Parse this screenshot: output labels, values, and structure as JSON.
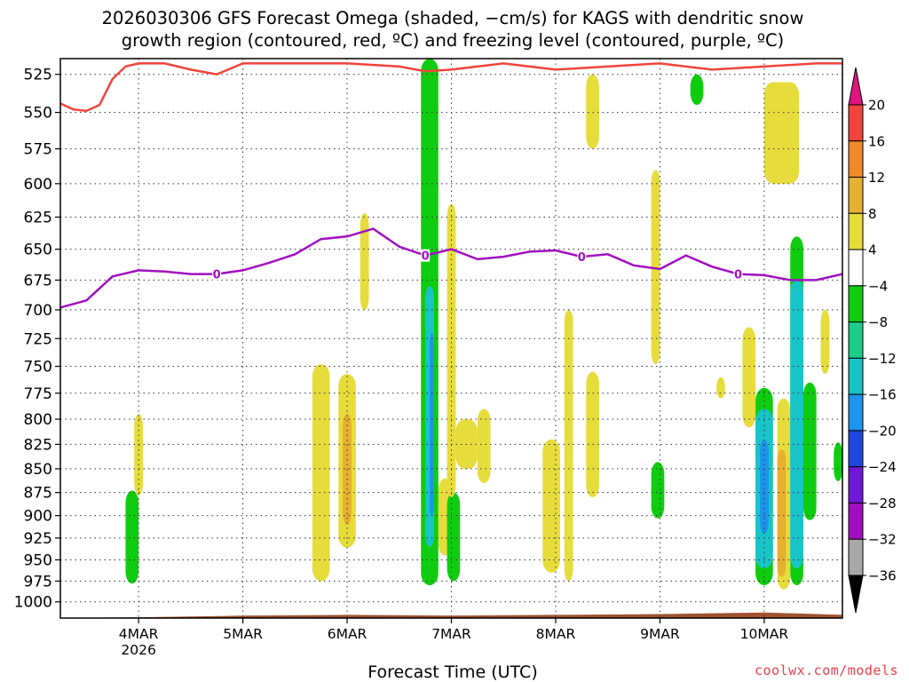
{
  "chart_data": {
    "type": "heatmap",
    "title_line1": "2026030306 GFS Forecast Omega (shaded, −cm/s) for KAGS with dendritic snow",
    "title_line2": "growth region (contoured, red, ºC) and freezing level (contoured, purple, ºC)",
    "xlabel": "Forecast Time (UTC)",
    "credit": "coolwx.com/models",
    "x_range": [
      "2026-03-03T06",
      "2026-03-10T18"
    ],
    "x_ticks": [
      {
        "label": "4MAR",
        "sublabel": "2026",
        "time": "2026-03-04T00"
      },
      {
        "label": "5MAR",
        "sublabel": "",
        "time": "2026-03-05T00"
      },
      {
        "label": "6MAR",
        "sublabel": "",
        "time": "2026-03-06T00"
      },
      {
        "label": "7MAR",
        "sublabel": "",
        "time": "2026-03-07T00"
      },
      {
        "label": "8MAR",
        "sublabel": "",
        "time": "2026-03-08T00"
      },
      {
        "label": "9MAR",
        "sublabel": "",
        "time": "2026-03-09T00"
      },
      {
        "label": "10MAR",
        "sublabel": "",
        "time": "2026-03-10T00"
      }
    ],
    "y_ticks": [
      {
        "label": "525",
        "value": 525
      },
      {
        "label": "550",
        "value": 550
      },
      {
        "label": "575",
        "value": 575
      },
      {
        "label": "600",
        "value": 600
      },
      {
        "label": "625",
        "value": 625
      },
      {
        "label": "650",
        "value": 650
      },
      {
        "label": "675",
        "value": 675
      },
      {
        "label": "700",
        "value": 700
      },
      {
        "label": "725",
        "value": 725
      },
      {
        "label": "750",
        "value": 750
      },
      {
        "label": "775",
        "value": 775
      },
      {
        "label": "800",
        "value": 800
      },
      {
        "label": "825",
        "value": 825
      },
      {
        "label": "850",
        "value": 850
      },
      {
        "label": "875",
        "value": 875
      },
      {
        "label": "900",
        "value": 900
      },
      {
        "label": "925",
        "value": 925
      },
      {
        "label": "950",
        "value": 950
      },
      {
        "label": "975",
        "value": 975
      },
      {
        "label": "1000",
        "value": 1000
      }
    ],
    "y_range": [
      515,
      1020
    ],
    "y_scale": "log-pressure",
    "grid": true,
    "colorbar": [
      {
        "label": "20",
        "color": "#e0147e",
        "role": "cap-high"
      },
      {
        "label": "16",
        "color": "#f0443c",
        "lo": 16,
        "hi": 20
      },
      {
        "label": "12",
        "color": "#ee8a2a",
        "lo": 12,
        "hi": 16
      },
      {
        "label": "8",
        "color": "#e6b030",
        "lo": 8,
        "hi": 12
      },
      {
        "label": "4",
        "color": "#e6dc3c",
        "lo": 4,
        "hi": 8
      },
      {
        "label": "−4",
        "color": "#ffffff",
        "lo": -4,
        "hi": 4
      },
      {
        "label": "−8",
        "color": "#10cc10",
        "lo": -8,
        "hi": -4
      },
      {
        "label": "−12",
        "color": "#1ccc88",
        "lo": -12,
        "hi": -8
      },
      {
        "label": "−16",
        "color": "#18c4c8",
        "lo": -16,
        "hi": -12
      },
      {
        "label": "−20",
        "color": "#1c94ec",
        "lo": -20,
        "hi": -16
      },
      {
        "label": "−24",
        "color": "#2048e0",
        "lo": -24,
        "hi": -20
      },
      {
        "label": "−28",
        "color": "#7018d8",
        "lo": -28,
        "hi": -24
      },
      {
        "label": "−32",
        "color": "#a010c0",
        "lo": -32,
        "hi": -28
      },
      {
        "label": "−36",
        "color": "#a8a8a8",
        "lo": -36,
        "hi": -32
      },
      {
        "label": "",
        "color": "#000000",
        "role": "cap-low"
      }
    ],
    "omega_areas": [
      {
        "t0": "2026-03-03T21",
        "t1": "2026-03-04T00",
        "p0": 873,
        "p1": 978,
        "color": "#10cc10"
      },
      {
        "t0": "2026-03-03T23",
        "t1": "2026-03-04T01",
        "p0": 795,
        "p1": 878,
        "color": "#e6dc3c"
      },
      {
        "t0": "2026-03-05T16",
        "t1": "2026-03-05T20",
        "p0": 748,
        "p1": 975,
        "color": "#e6dc3c"
      },
      {
        "t0": "2026-03-05T22",
        "t1": "2026-03-06T02",
        "p0": 757,
        "p1": 936,
        "color": "#e6dc3c"
      },
      {
        "t0": "2026-03-05T23",
        "t1": "2026-03-06T01",
        "p0": 795,
        "p1": 910,
        "color": "#e6b030"
      },
      {
        "t0": "2026-03-06T03",
        "t1": "2026-03-06T05",
        "p0": 622,
        "p1": 700,
        "color": "#e6dc3c"
      },
      {
        "t0": "2026-03-06T17",
        "t1": "2026-03-06T21",
        "p0": 510,
        "p1": 980,
        "color": "#10cc10"
      },
      {
        "t0": "2026-03-06T18",
        "t1": "2026-03-06T20",
        "p0": 680,
        "p1": 935,
        "color": "#18c4c8"
      },
      {
        "t0": "2026-03-06T19",
        "t1": "2026-03-06T20",
        "p0": 720,
        "p1": 900,
        "color": "#1c94ec"
      },
      {
        "t0": "2026-03-06T21",
        "t1": "2026-03-07T00",
        "p0": 860,
        "p1": 945,
        "color": "#e6dc3c"
      },
      {
        "t0": "2026-03-06T23",
        "t1": "2026-03-07T02",
        "p0": 875,
        "p1": 975,
        "color": "#10cc10"
      },
      {
        "t0": "2026-03-06T23",
        "t1": "2026-03-07T01",
        "p0": 615,
        "p1": 880,
        "color": "#e6dc3c"
      },
      {
        "t0": "2026-03-07T01",
        "t1": "2026-03-07T06",
        "p0": 800,
        "p1": 850,
        "color": "#e6dc3c"
      },
      {
        "t0": "2026-03-07T06",
        "t1": "2026-03-07T09",
        "p0": 790,
        "p1": 865,
        "color": "#e6dc3c"
      },
      {
        "t0": "2026-03-07T21",
        "t1": "2026-03-08T01",
        "p0": 820,
        "p1": 965,
        "color": "#e6dc3c"
      },
      {
        "t0": "2026-03-08T02",
        "t1": "2026-03-08T04",
        "p0": 700,
        "p1": 975,
        "color": "#e6dc3c"
      },
      {
        "t0": "2026-03-08T07",
        "t1": "2026-03-08T10",
        "p0": 525,
        "p1": 575,
        "color": "#e6dc3c"
      },
      {
        "t0": "2026-03-08T07",
        "t1": "2026-03-08T10",
        "p0": 755,
        "p1": 880,
        "color": "#e6dc3c"
      },
      {
        "t0": "2026-03-08T22",
        "t1": "2026-03-09T00",
        "p0": 590,
        "p1": 748,
        "color": "#e6dc3c"
      },
      {
        "t0": "2026-03-08T22",
        "t1": "2026-03-09T01",
        "p0": 843,
        "p1": 903,
        "color": "#10cc10"
      },
      {
        "t0": "2026-03-09T07",
        "t1": "2026-03-09T10",
        "p0": 525,
        "p1": 545,
        "color": "#10cc10"
      },
      {
        "t0": "2026-03-09T13",
        "t1": "2026-03-09T15",
        "p0": 760,
        "p1": 780,
        "color": "#e6dc3c"
      },
      {
        "t0": "2026-03-09T19",
        "t1": "2026-03-09T22",
        "p0": 715,
        "p1": 808,
        "color": "#e6dc3c"
      },
      {
        "t0": "2026-03-09T22",
        "t1": "2026-03-10T02",
        "p0": 770,
        "p1": 980,
        "color": "#10cc10"
      },
      {
        "t0": "2026-03-09T22",
        "t1": "2026-03-10T02",
        "p0": 790,
        "p1": 960,
        "color": "#18c4c8"
      },
      {
        "t0": "2026-03-09T23",
        "t1": "2026-03-10T01",
        "p0": 820,
        "p1": 920,
        "color": "#1c94ec"
      },
      {
        "t0": "2026-03-10T00",
        "t1": "2026-03-10T08",
        "p0": 530,
        "p1": 600,
        "color": "#e6dc3c"
      },
      {
        "t0": "2026-03-10T03",
        "t1": "2026-03-10T06",
        "p0": 780,
        "p1": 985,
        "color": "#e6dc3c"
      },
      {
        "t0": "2026-03-10T03",
        "t1": "2026-03-10T05",
        "p0": 830,
        "p1": 970,
        "color": "#e6b030"
      },
      {
        "t0": "2026-03-10T06",
        "t1": "2026-03-10T09",
        "p0": 640,
        "p1": 980,
        "color": "#10cc10"
      },
      {
        "t0": "2026-03-10T06",
        "t1": "2026-03-10T09",
        "p0": 675,
        "p1": 960,
        "color": "#18c4c8"
      },
      {
        "t0": "2026-03-10T09",
        "t1": "2026-03-10T12",
        "p0": 765,
        "p1": 905,
        "color": "#10cc10"
      },
      {
        "t0": "2026-03-10T13",
        "t1": "2026-03-10T15",
        "p0": 700,
        "p1": 757,
        "color": "#e6dc3c"
      },
      {
        "t0": "2026-03-10T16",
        "t1": "2026-03-10T18",
        "p0": 823,
        "p1": 863,
        "color": "#10cc10"
      }
    ],
    "freezing_level": {
      "label": "0",
      "color": "#a010c0",
      "times": [
        "2026-03-03T06",
        "2026-03-03T12",
        "2026-03-03T18",
        "2026-03-04T00",
        "2026-03-04T06",
        "2026-03-04T12",
        "2026-03-04T18",
        "2026-03-05T00",
        "2026-03-05T06",
        "2026-03-05T12",
        "2026-03-05T18",
        "2026-03-06T00",
        "2026-03-06T06",
        "2026-03-06T12",
        "2026-03-06T18",
        "2026-03-07T00",
        "2026-03-07T06",
        "2026-03-07T12",
        "2026-03-07T18",
        "2026-03-08T00",
        "2026-03-08T06",
        "2026-03-08T12",
        "2026-03-08T18",
        "2026-03-09T00",
        "2026-03-09T06",
        "2026-03-09T12",
        "2026-03-09T18",
        "2026-03-10T00",
        "2026-03-10T06",
        "2026-03-10T12",
        "2026-03-10T18"
      ],
      "values": [
        698,
        692,
        672,
        667,
        668,
        670,
        670,
        667,
        661,
        654,
        642,
        640,
        634,
        648,
        655,
        650,
        658,
        656,
        652,
        651,
        656,
        654,
        663,
        666,
        655,
        664,
        670,
        671,
        675,
        675,
        670
      ],
      "label_times": [
        "2026-03-04T18",
        "2026-03-06T18",
        "2026-03-08T06",
        "2026-03-09T18"
      ]
    },
    "dgz_contour": {
      "color": "#f0443c",
      "times": [
        "2026-03-03T06",
        "2026-03-03T09",
        "2026-03-03T12",
        "2026-03-03T15",
        "2026-03-03T18",
        "2026-03-03T21",
        "2026-03-04T00",
        "2026-03-04T06",
        "2026-03-04T12",
        "2026-03-04T18",
        "2026-03-05T00",
        "2026-03-05T12",
        "2026-03-06T00",
        "2026-03-06T12",
        "2026-03-06T18",
        "2026-03-07T00",
        "2026-03-07T12",
        "2026-03-08T00",
        "2026-03-08T12",
        "2026-03-09T00",
        "2026-03-09T12",
        "2026-03-10T00",
        "2026-03-10T12",
        "2026-03-10T18"
      ],
      "values": [
        544,
        548,
        549,
        545,
        528,
        520,
        518,
        518,
        522,
        525,
        518,
        518,
        518,
        520,
        523,
        522,
        518,
        522,
        520,
        518,
        522,
        520,
        518,
        518
      ]
    },
    "terrain": {
      "color": "#a0522d",
      "times": [
        "2026-03-03T06",
        "2026-03-04T00",
        "2026-03-05T00",
        "2026-03-06T00",
        "2026-03-07T00",
        "2026-03-08T00",
        "2026-03-09T00",
        "2026-03-10T00",
        "2026-03-10T18"
      ],
      "values": [
        1020,
        1019,
        1017,
        1016,
        1017,
        1016,
        1015,
        1013,
        1016
      ]
    }
  }
}
